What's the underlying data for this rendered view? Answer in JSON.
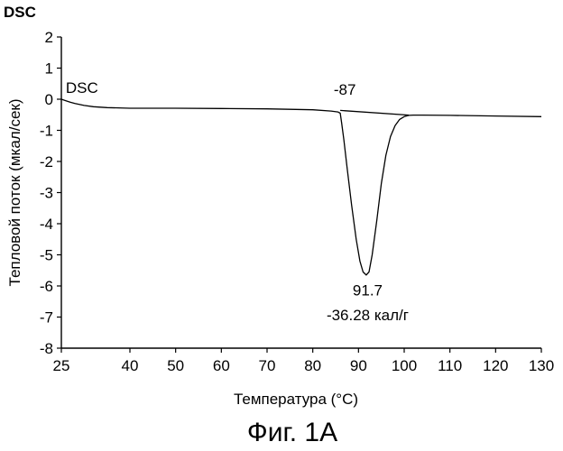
{
  "chart_data": {
    "type": "line",
    "axis_unit_label": "DSC",
    "xlabel": "Температура (°C)",
    "ylabel": "Тепловой поток (мкал/сек)",
    "xlim": [
      25,
      130
    ],
    "ylim": [
      -8,
      2
    ],
    "x_ticks": [
      25,
      40,
      50,
      60,
      70,
      80,
      90,
      100,
      110,
      120,
      130
    ],
    "y_ticks": [
      2,
      1,
      0,
      -1,
      -2,
      -3,
      -4,
      -5,
      -6,
      -7,
      -8
    ],
    "grid": false,
    "legend": "none",
    "series": [
      {
        "name": "DSC",
        "x": [
          25,
          26,
          27,
          28,
          30,
          32,
          35,
          40,
          50,
          60,
          70,
          80,
          84,
          85.5,
          86,
          86.3,
          86.8,
          87.5,
          88.5,
          89.5,
          90.3,
          91,
          91.7,
          92.3,
          93,
          94,
          95,
          96,
          97,
          98,
          99,
          100,
          101,
          102,
          104,
          110,
          120,
          130
        ],
        "y": [
          0,
          -0.05,
          -0.1,
          -0.14,
          -0.2,
          -0.24,
          -0.27,
          -0.29,
          -0.29,
          -0.3,
          -0.31,
          -0.34,
          -0.38,
          -0.41,
          -0.45,
          -0.75,
          -1.3,
          -2.2,
          -3.4,
          -4.5,
          -5.2,
          -5.55,
          -5.65,
          -5.55,
          -5.0,
          -3.9,
          -2.7,
          -1.8,
          -1.2,
          -0.85,
          -0.65,
          -0.56,
          -0.52,
          -0.51,
          -0.51,
          -0.52,
          -0.54,
          -0.56
        ]
      },
      {
        "name": "baseline",
        "x": [
          86,
          101
        ],
        "y": [
          -0.36,
          -0.51
        ]
      }
    ],
    "annotations": [
      {
        "text": "DSC",
        "x": 29.5,
        "y": 0.2
      },
      {
        "text": "-87",
        "x": 87,
        "y": 0.14
      },
      {
        "text": "91.7",
        "x": 92,
        "y": -6.3
      },
      {
        "text": "-36.28 кал/г",
        "x": 92,
        "y": -7.1
      }
    ]
  },
  "caption": "Фиг. 1А"
}
